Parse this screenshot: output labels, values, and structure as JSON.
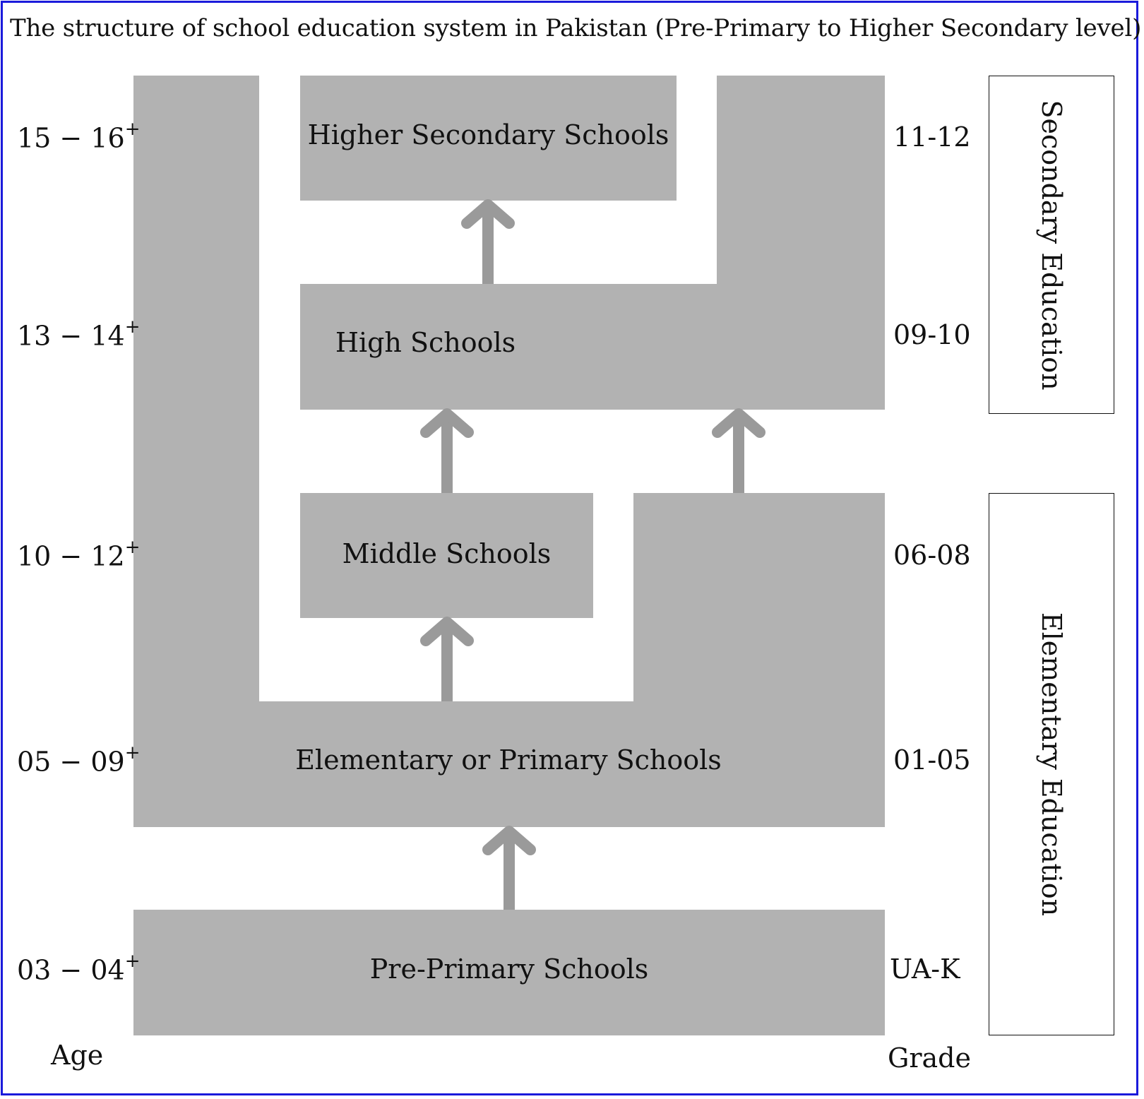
{
  "title": "The structure of school education system in Pakistan (Pre-Primary to Higher Secondary level)",
  "ages": [
    {
      "text": "15 − 16",
      "sup": "+"
    },
    {
      "text": "13 − 14",
      "sup": "+"
    },
    {
      "text": "10 − 12",
      "sup": "+"
    },
    {
      "text": "05 − 09",
      "sup": "+"
    },
    {
      "text": "03 − 04",
      "sup": "+"
    }
  ],
  "age_label": "Age",
  "grades": [
    "11-12",
    "09-10",
    "06-08",
    "01-05",
    "UA-K"
  ],
  "grade_label": "Grade",
  "schools": {
    "higher_secondary": "Higher Secondary Schools",
    "high": "High Schools",
    "middle": "Middle Schools",
    "elementary": "Elementary or Primary Schools",
    "pre_primary": "Pre-Primary Schools"
  },
  "stages": {
    "secondary": "Secondary Education",
    "elementary": "Elementary Education"
  },
  "colors": {
    "block": "#b2b2b2",
    "arrow": "#9a9a9a",
    "frame": "#1a1adb"
  }
}
